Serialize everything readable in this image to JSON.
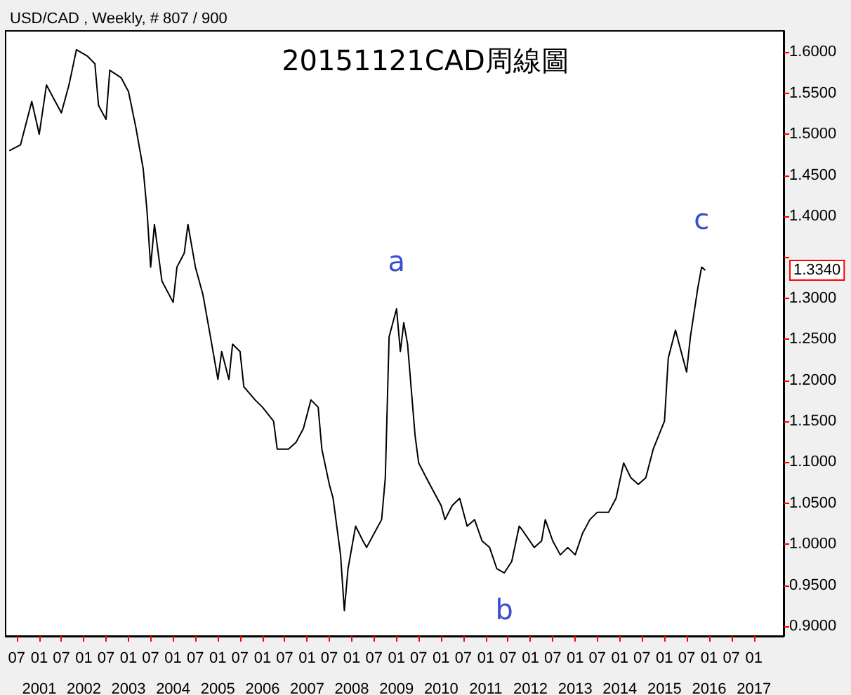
{
  "chart_data": {
    "type": "line",
    "title": "20151121CAD周線圖",
    "subtitle": "USD/CAD , Weekly, # 807 / 900",
    "x": [
      "2000-05",
      "2000-08",
      "2000-11",
      "2001-01",
      "2001-03",
      "2001-05",
      "2001-07",
      "2001-09",
      "2001-11",
      "2002-02",
      "2002-04",
      "2002-05",
      "2002-07",
      "2002-08",
      "2002-11",
      "2003-01",
      "2003-03",
      "2003-05",
      "2003-06",
      "2003-07",
      "2003-08",
      "2003-10",
      "2004-01",
      "2004-02",
      "2004-04",
      "2004-05",
      "2004-07",
      "2004-09",
      "2004-11",
      "2005-01",
      "2005-02",
      "2005-04",
      "2005-05",
      "2005-07",
      "2005-08",
      "2005-11",
      "2006-01",
      "2006-04",
      "2006-05",
      "2006-08",
      "2006-10",
      "2006-12",
      "2007-02",
      "2007-04",
      "2007-05",
      "2007-07",
      "2007-08",
      "2007-10",
      "2007-11",
      "2007-12",
      "2008-02",
      "2008-04",
      "2008-05",
      "2008-07",
      "2008-09",
      "2008-10",
      "2008-11",
      "2009-01",
      "2009-02",
      "2009-03",
      "2009-04",
      "2009-06",
      "2009-07",
      "2009-09",
      "2009-11",
      "2010-01",
      "2010-02",
      "2010-04",
      "2010-06",
      "2010-08",
      "2010-10",
      "2010-12",
      "2011-02",
      "2011-04",
      "2011-06",
      "2011-08",
      "2011-10",
      "2011-11",
      "2012-02",
      "2012-04",
      "2012-05",
      "2012-07",
      "2012-09",
      "2012-11",
      "2013-01",
      "2013-03",
      "2013-05",
      "2013-07",
      "2013-10",
      "2013-12",
      "2014-02",
      "2014-04",
      "2014-06",
      "2014-08",
      "2014-10",
      "2015-01",
      "2015-02",
      "2015-04",
      "2015-05",
      "2015-07",
      "2015-08",
      "2015-10",
      "2015-11",
      "2015-12"
    ],
    "series": [
      {
        "color": "#000000",
        "values": [
          1.48,
          1.487,
          1.54,
          1.5,
          1.56,
          1.543,
          1.526,
          1.56,
          1.603,
          1.595,
          1.586,
          1.535,
          1.518,
          1.578,
          1.569,
          1.552,
          1.509,
          1.458,
          1.407,
          1.338,
          1.39,
          1.321,
          1.295,
          1.338,
          1.355,
          1.39,
          1.338,
          1.304,
          1.253,
          1.201,
          1.235,
          1.201,
          1.244,
          1.235,
          1.192,
          1.176,
          1.167,
          1.15,
          1.116,
          1.116,
          1.124,
          1.141,
          1.176,
          1.167,
          1.116,
          1.073,
          1.056,
          0.987,
          0.919,
          0.97,
          1.022,
          1.004,
          0.996,
          1.013,
          1.03,
          1.081,
          1.253,
          1.287,
          1.235,
          1.27,
          1.244,
          1.133,
          1.099,
          1.081,
          1.064,
          1.047,
          1.03,
          1.047,
          1.056,
          1.022,
          1.03,
          1.004,
          0.996,
          0.97,
          0.965,
          0.979,
          1.022,
          1.016,
          0.996,
          1.004,
          1.03,
          1.004,
          0.987,
          0.996,
          0.987,
          1.013,
          1.03,
          1.039,
          1.039,
          1.056,
          1.099,
          1.081,
          1.073,
          1.081,
          1.116,
          1.15,
          1.227,
          1.261,
          1.244,
          1.21,
          1.253,
          1.313,
          1.338,
          1.334
        ]
      }
    ],
    "xlim": [
      "2000-04",
      "2017-09"
    ],
    "xticks": [
      {
        "value": "2000-07",
        "label": "07"
      },
      {
        "value": "2001-01",
        "label": "01\n2001"
      },
      {
        "value": "2001-07",
        "label": "07"
      },
      {
        "value": "2002-01",
        "label": "01\n2002"
      },
      {
        "value": "2002-07",
        "label": "07"
      },
      {
        "value": "2003-01",
        "label": "01\n2003"
      },
      {
        "value": "2003-07",
        "label": "07"
      },
      {
        "value": "2004-01",
        "label": "01\n2004"
      },
      {
        "value": "2004-07",
        "label": "07"
      },
      {
        "value": "2005-01",
        "label": "01\n2005"
      },
      {
        "value": "2005-07",
        "label": "07"
      },
      {
        "value": "2006-01",
        "label": "01\n2006"
      },
      {
        "value": "2006-07",
        "label": "07"
      },
      {
        "value": "2007-01",
        "label": "01\n2007"
      },
      {
        "value": "2007-07",
        "label": "07"
      },
      {
        "value": "2008-01",
        "label": "01\n2008"
      },
      {
        "value": "2008-07",
        "label": "07"
      },
      {
        "value": "2009-01",
        "label": "01\n2009"
      },
      {
        "value": "2009-07",
        "label": "07"
      },
      {
        "value": "2010-01",
        "label": "01\n2010"
      },
      {
        "value": "2010-07",
        "label": "07"
      },
      {
        "value": "2011-01",
        "label": "01\n2011"
      },
      {
        "value": "2011-07",
        "label": "07"
      },
      {
        "value": "2012-01",
        "label": "01\n2012"
      },
      {
        "value": "2012-07",
        "label": "07"
      },
      {
        "value": "2013-01",
        "label": "01\n2013"
      },
      {
        "value": "2013-07",
        "label": "07"
      },
      {
        "value": "2014-01",
        "label": "01\n2014"
      },
      {
        "value": "2014-07",
        "label": "07"
      },
      {
        "value": "2015-01",
        "label": "01\n2015"
      },
      {
        "value": "2015-07",
        "label": "07"
      },
      {
        "value": "2016-01",
        "label": "01\n2016"
      },
      {
        "value": "2016-07",
        "label": "07"
      },
      {
        "value": "2017-01",
        "label": "01\n2017"
      }
    ],
    "ylim": [
      0.888,
      1.626
    ],
    "yticks": [
      {
        "value": 0.9,
        "label": "0.9000"
      },
      {
        "value": 0.95,
        "label": "0.9500"
      },
      {
        "value": 1.0,
        "label": "1.0000"
      },
      {
        "value": 1.05,
        "label": "1.0500"
      },
      {
        "value": 1.1,
        "label": "1.1000"
      },
      {
        "value": 1.15,
        "label": "1.1500"
      },
      {
        "value": 1.2,
        "label": "1.2000"
      },
      {
        "value": 1.25,
        "label": "1.2500"
      },
      {
        "value": 1.3,
        "label": "1.3000"
      },
      {
        "value": 1.35,
        "label": null
      },
      {
        "value": 1.4,
        "label": "1.4000"
      },
      {
        "value": 1.45,
        "label": "1.4500"
      },
      {
        "value": 1.5,
        "label": "1.5000"
      },
      {
        "value": 1.55,
        "label": "1.5500"
      },
      {
        "value": 1.6,
        "label": "1.6000"
      }
    ],
    "annotations": [
      {
        "text": "a",
        "x": "2009-01",
        "y": 1.287
      },
      {
        "text": "b",
        "x": "2011-06",
        "y": 0.965
      },
      {
        "text": "c",
        "x": "2015-11",
        "y": 1.338
      },
      "1.3340"
    ],
    "grid": false
  }
}
